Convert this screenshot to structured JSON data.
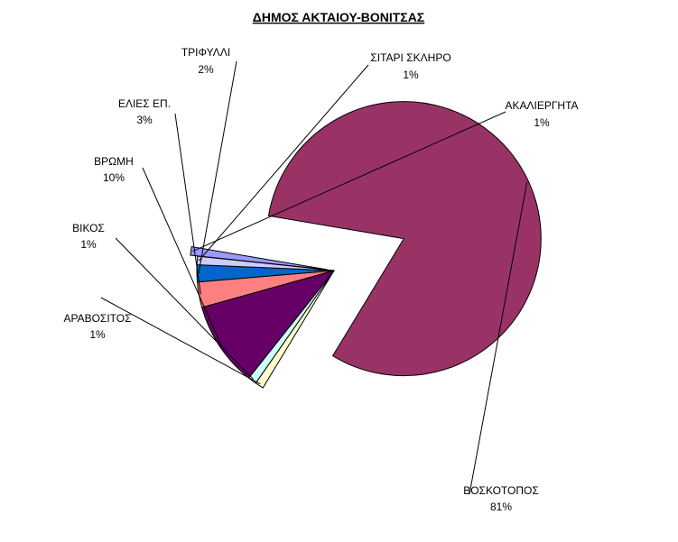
{
  "chart_data": {
    "type": "pie",
    "title": "ΔΗΜΟΣ ΑΚΤΑΙΟΥ-ΒΟΝΙΤΣΑΣ",
    "slices": [
      {
        "name": "ΑΚΑΛΙΕΡΓΗΤΑ",
        "value": 1,
        "label": "1%",
        "color": "#9999FF"
      },
      {
        "name": "ΒΟΣΚΟΤΟΠΟΣ",
        "value": 81,
        "label": "81%",
        "color": "#993366"
      },
      {
        "name": "ΑΡΑΒΟΣΙΤΟΣ",
        "value": 1,
        "label": "1%",
        "color": "#FFFFCC"
      },
      {
        "name": "ΒΙΚΟΣ",
        "value": 1,
        "label": "1%",
        "color": "#CCFFFF"
      },
      {
        "name": "ΒΡΩΜΗ",
        "value": 10,
        "label": "10%",
        "color": "#660066"
      },
      {
        "name": "ΕΛΙΕΣ ΕΠ.",
        "value": 3,
        "label": "3%",
        "color": "#FF8080"
      },
      {
        "name": "ΤΡΙΦΥΛΛΙ",
        "value": 2,
        "label": "2%",
        "color": "#0066CC"
      },
      {
        "name": "ΣΙΤΑΡΙ ΣΚΛΗΡΟ",
        "value": 1,
        "label": "1%",
        "color": "#CCCCFF"
      }
    ],
    "legend": "none",
    "data_labels": "outside with leader lines"
  }
}
